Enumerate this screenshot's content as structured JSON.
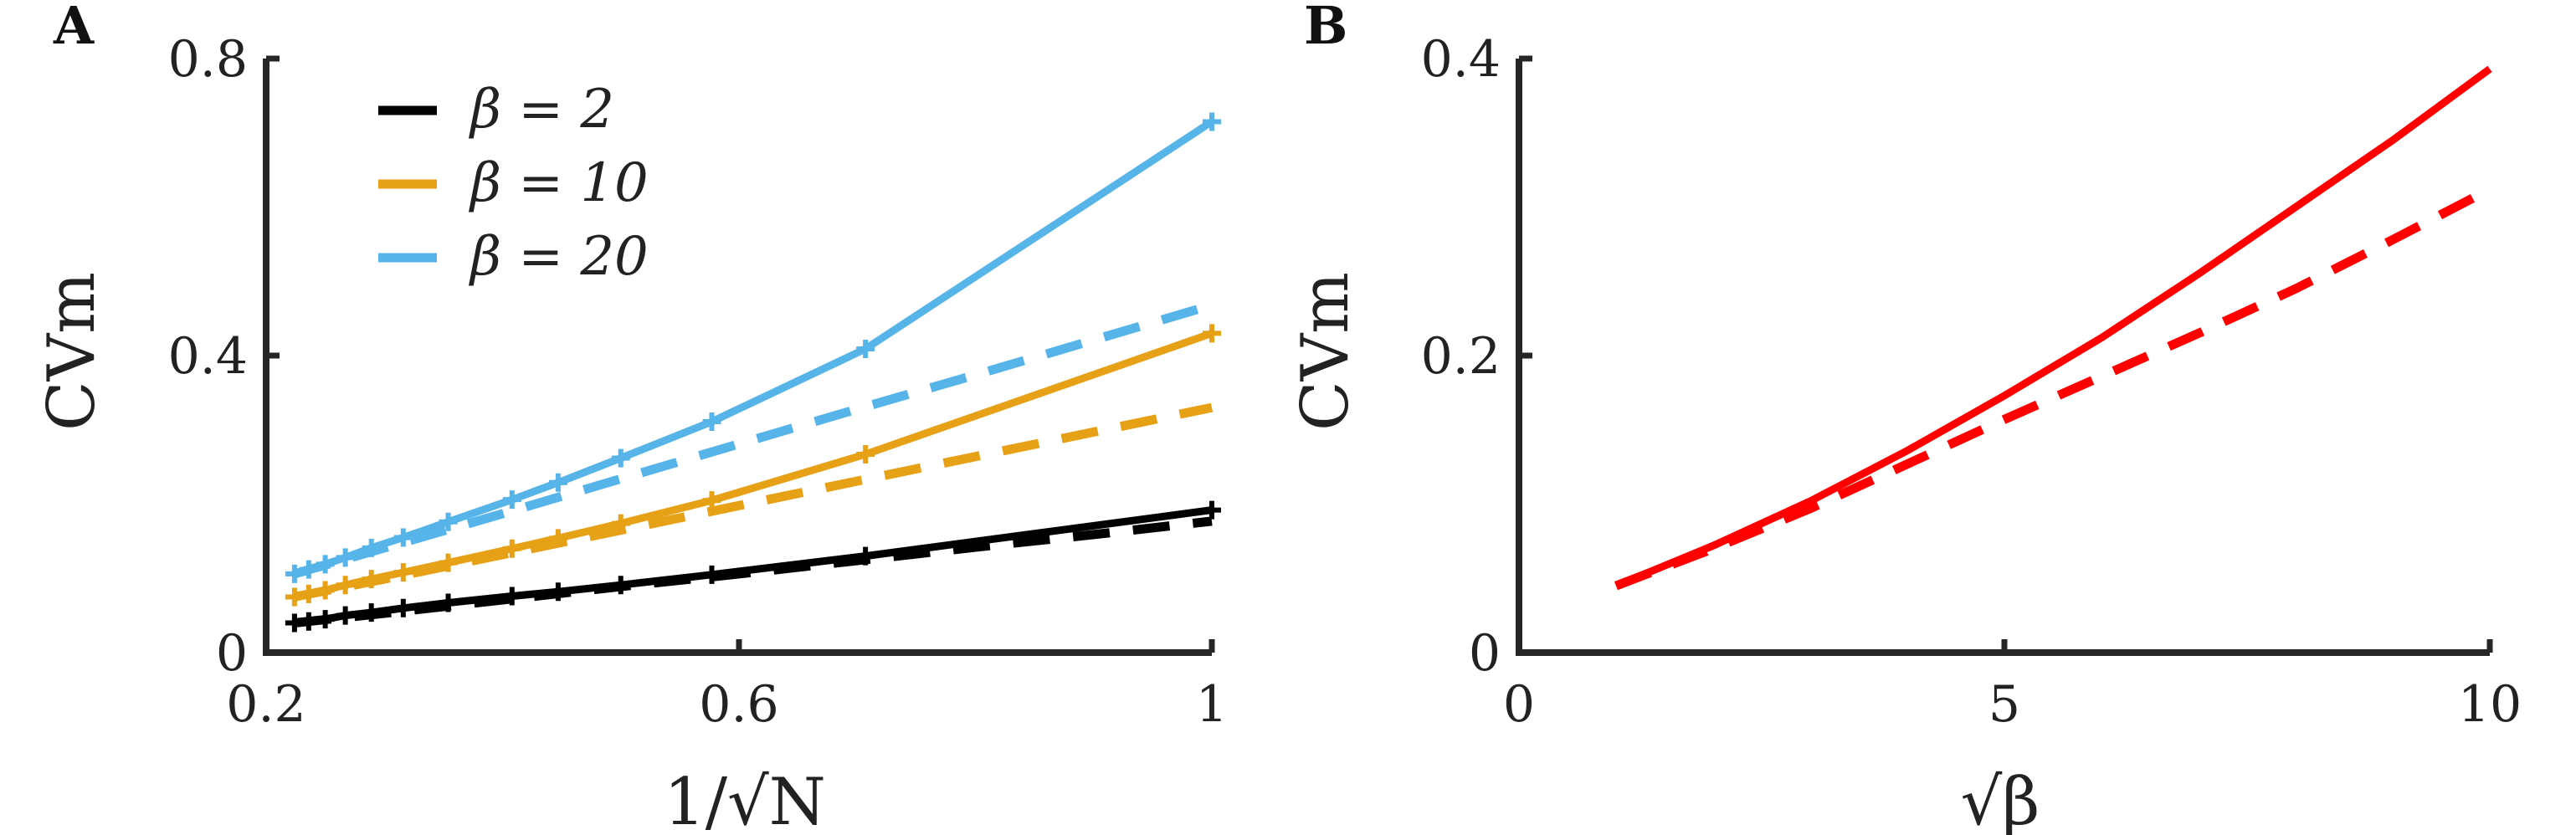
{
  "chart_data": [
    {
      "panel": "A",
      "type": "line",
      "xlabel": "1/√N",
      "ylabel": "CVm",
      "xlim": [
        0.2,
        1.0
      ],
      "ylim": [
        0,
        0.8
      ],
      "xticks": [
        "0.2",
        "0.6",
        "1"
      ],
      "yticks": [
        "0",
        "0.4",
        "0.8"
      ],
      "legend_position": "top-left",
      "series": [
        {
          "name": "β = 2",
          "color": "#000000",
          "solid": {
            "x": [
              0.224,
              0.236,
              0.25,
              0.267,
              0.289,
              0.316,
              0.354,
              0.408,
              0.447,
              0.5,
              0.577,
              0.707,
              1.0
            ],
            "y": [
              0.04,
              0.042,
              0.045,
              0.05,
              0.054,
              0.06,
              0.067,
              0.076,
              0.082,
              0.091,
              0.105,
              0.13,
              0.192
            ]
          },
          "dashed": {
            "x": [
              0.224,
              0.3,
              0.4,
              0.5,
              0.6,
              0.7,
              0.8,
              0.9,
              1.0
            ],
            "y": [
              0.04,
              0.053,
              0.071,
              0.089,
              0.106,
              0.124,
              0.142,
              0.159,
              0.177
            ]
          }
        },
        {
          "name": "β = 10",
          "color": "#E6A117",
          "solid": {
            "x": [
              0.224,
              0.236,
              0.25,
              0.267,
              0.289,
              0.316,
              0.354,
              0.408,
              0.447,
              0.5,
              0.577,
              0.707,
              1.0
            ],
            "y": [
              0.075,
              0.079,
              0.084,
              0.091,
              0.099,
              0.108,
              0.121,
              0.14,
              0.154,
              0.174,
              0.205,
              0.267,
              0.43
            ]
          },
          "dashed": {
            "x": [
              0.224,
              0.3,
              0.4,
              0.5,
              0.6,
              0.7,
              0.8,
              0.9,
              1.0
            ],
            "y": [
              0.075,
              0.099,
              0.132,
              0.165,
              0.198,
              0.231,
              0.264,
              0.297,
              0.33
            ]
          }
        },
        {
          "name": "β = 20",
          "color": "#56B4E9",
          "solid": {
            "x": [
              0.224,
              0.236,
              0.25,
              0.267,
              0.289,
              0.316,
              0.354,
              0.408,
              0.447,
              0.5,
              0.577,
              0.707,
              1.0
            ],
            "y": [
              0.106,
              0.112,
              0.119,
              0.128,
              0.141,
              0.155,
              0.176,
              0.206,
              0.229,
              0.262,
              0.311,
              0.409,
              0.715
            ]
          },
          "dashed": {
            "x": [
              0.224,
              0.3,
              0.4,
              0.5,
              0.6,
              0.7,
              0.8,
              0.9,
              1.0
            ],
            "y": [
              0.106,
              0.141,
              0.187,
              0.234,
              0.281,
              0.328,
              0.374,
              0.421,
              0.468
            ]
          }
        }
      ]
    },
    {
      "panel": "B",
      "type": "line",
      "xlabel": "√β",
      "ylabel": "CVm",
      "xlim": [
        0,
        10
      ],
      "ylim": [
        0,
        0.4
      ],
      "xticks": [
        "0",
        "5",
        "10"
      ],
      "yticks": [
        "0",
        "0.2",
        "0.4"
      ],
      "series": [
        {
          "color": "#FF0000",
          "solid": {
            "x": [
              1,
              2,
              3,
              4,
              5,
              6,
              7,
              8,
              9,
              10
            ],
            "y": [
              0.045,
              0.072,
              0.102,
              0.136,
              0.173,
              0.212,
              0.255,
              0.3,
              0.345,
              0.393
            ]
          },
          "dashed": {
            "x": [
              1,
              2,
              3,
              4,
              5,
              6,
              7,
              8,
              9,
              10
            ],
            "y": [
              0.045,
              0.07,
              0.097,
              0.127,
              0.157,
              0.186,
              0.215,
              0.245,
              0.278,
              0.312
            ]
          }
        }
      ]
    }
  ]
}
